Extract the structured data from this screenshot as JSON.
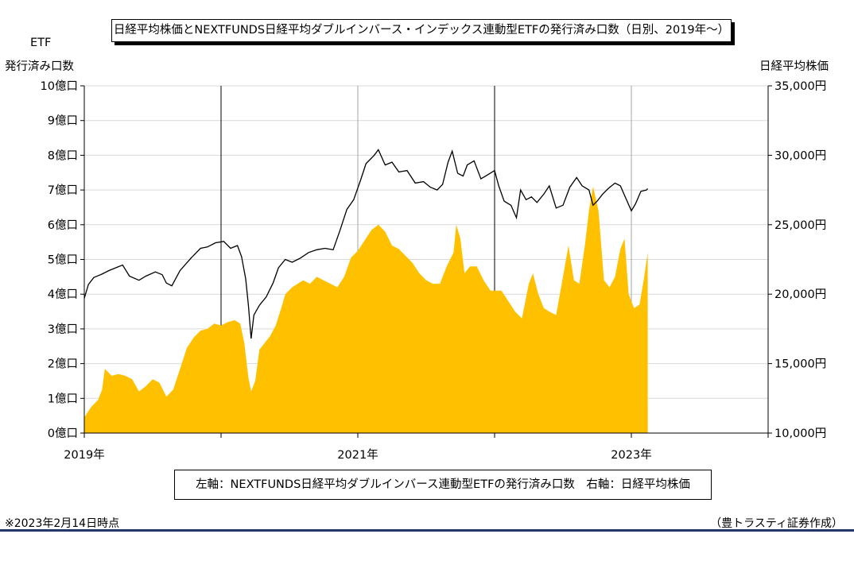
{
  "title": "日経平均株価とNEXTFUNDS日経平均ダブルインバース・インデックス連動型ETFの発行済み口数（日別、2019年～）",
  "left_axis_title_line1": "ETF",
  "left_axis_title_line2": "発行済み口数",
  "right_axis_title": "日経平均株価",
  "legend_text": "左軸：NEXTFUNDS日経平均ダブルインバース連動型ETFの発行済み口数　右軸：日経平均株価",
  "footnote": "※2023年2月14日時点",
  "credit": "（豊トラスティ証券作成）",
  "chart_data": {
    "type": "area",
    "title": "日経平均株価とNEXTFUNDS日経平均ダブルインバース・インデックス連動型ETFの発行済み口数（日別、2019年～）",
    "x_label_ticks": [
      {
        "x": 2019.0,
        "label": "2019年"
      },
      {
        "x": 2021.0,
        "label": "2021年"
      },
      {
        "x": 2023.0,
        "label": "2023年"
      }
    ],
    "x_minor_ticks": [
      2020.0,
      2022.0
    ],
    "x_divider_lines": [
      2020.0,
      2022.0
    ],
    "xlim": [
      2019.0,
      2024.0
    ],
    "grid": true,
    "left_axis": {
      "ylim": [
        0,
        10
      ],
      "ticks": [
        0,
        1,
        2,
        3,
        4,
        5,
        6,
        7,
        8,
        9,
        10
      ],
      "tick_labels": [
        "0億口",
        "1億口",
        "2億口",
        "3億口",
        "4億口",
        "5億口",
        "6億口",
        "7億口",
        "8億口",
        "9億口",
        "10億口"
      ]
    },
    "right_axis": {
      "ylim": [
        10000,
        35000
      ],
      "ticks": [
        10000,
        15000,
        20000,
        25000,
        30000,
        35000
      ],
      "tick_labels": [
        "10,000円",
        "15,000円",
        "20,000円",
        "25,000円",
        "30,000円",
        "35,000円"
      ]
    },
    "series": [
      {
        "axis": "left",
        "type": "area",
        "color": "#ffc000",
        "unit": "億口",
        "points": [
          [
            2019.0,
            0.45
          ],
          [
            2019.05,
            0.75
          ],
          [
            2019.1,
            0.95
          ],
          [
            2019.13,
            1.25
          ],
          [
            2019.15,
            1.85
          ],
          [
            2019.2,
            1.65
          ],
          [
            2019.25,
            1.7
          ],
          [
            2019.3,
            1.65
          ],
          [
            2019.35,
            1.55
          ],
          [
            2019.4,
            1.2
          ],
          [
            2019.45,
            1.35
          ],
          [
            2019.5,
            1.55
          ],
          [
            2019.55,
            1.45
          ],
          [
            2019.6,
            1.05
          ],
          [
            2019.65,
            1.25
          ],
          [
            2019.7,
            1.85
          ],
          [
            2019.75,
            2.45
          ],
          [
            2019.8,
            2.75
          ],
          [
            2019.85,
            2.95
          ],
          [
            2019.9,
            3.0
          ],
          [
            2019.95,
            3.15
          ],
          [
            2020.0,
            3.1
          ],
          [
            2020.05,
            3.2
          ],
          [
            2020.1,
            3.25
          ],
          [
            2020.14,
            3.15
          ],
          [
            2020.17,
            2.6
          ],
          [
            2020.2,
            1.6
          ],
          [
            2020.22,
            1.2
          ],
          [
            2020.25,
            1.5
          ],
          [
            2020.28,
            2.4
          ],
          [
            2020.32,
            2.6
          ],
          [
            2020.36,
            2.8
          ],
          [
            2020.4,
            3.1
          ],
          [
            2020.44,
            3.6
          ],
          [
            2020.47,
            4.0
          ],
          [
            2020.52,
            4.2
          ],
          [
            2020.56,
            4.3
          ],
          [
            2020.6,
            4.4
          ],
          [
            2020.65,
            4.3
          ],
          [
            2020.7,
            4.5
          ],
          [
            2020.75,
            4.4
          ],
          [
            2020.8,
            4.3
          ],
          [
            2020.85,
            4.2
          ],
          [
            2020.9,
            4.5
          ],
          [
            2020.95,
            5.05
          ],
          [
            2021.0,
            5.25
          ],
          [
            2021.05,
            5.55
          ],
          [
            2021.1,
            5.85
          ],
          [
            2021.15,
            6.0
          ],
          [
            2021.2,
            5.8
          ],
          [
            2021.25,
            5.4
          ],
          [
            2021.3,
            5.3
          ],
          [
            2021.35,
            5.1
          ],
          [
            2021.4,
            4.9
          ],
          [
            2021.45,
            4.6
          ],
          [
            2021.5,
            4.4
          ],
          [
            2021.55,
            4.3
          ],
          [
            2021.6,
            4.3
          ],
          [
            2021.65,
            4.8
          ],
          [
            2021.7,
            5.2
          ],
          [
            2021.72,
            6.0
          ],
          [
            2021.75,
            5.6
          ],
          [
            2021.78,
            4.6
          ],
          [
            2021.82,
            4.8
          ],
          [
            2021.87,
            4.8
          ],
          [
            2021.92,
            4.4
          ],
          [
            2021.97,
            4.1
          ],
          [
            2022.0,
            4.1
          ],
          [
            2022.05,
            4.1
          ],
          [
            2022.1,
            3.8
          ],
          [
            2022.15,
            3.5
          ],
          [
            2022.2,
            3.3
          ],
          [
            2022.25,
            4.3
          ],
          [
            2022.28,
            4.6
          ],
          [
            2022.32,
            4.0
          ],
          [
            2022.36,
            3.6
          ],
          [
            2022.4,
            3.5
          ],
          [
            2022.45,
            3.4
          ],
          [
            2022.5,
            4.5
          ],
          [
            2022.54,
            5.4
          ],
          [
            2022.58,
            4.4
          ],
          [
            2022.62,
            4.3
          ],
          [
            2022.66,
            5.4
          ],
          [
            2022.69,
            6.4
          ],
          [
            2022.72,
            7.1
          ],
          [
            2022.76,
            6.4
          ],
          [
            2022.8,
            4.4
          ],
          [
            2022.84,
            4.2
          ],
          [
            2022.88,
            4.5
          ],
          [
            2022.92,
            5.3
          ],
          [
            2022.95,
            5.6
          ],
          [
            2022.98,
            4.0
          ],
          [
            2023.02,
            3.6
          ],
          [
            2023.06,
            3.7
          ],
          [
            2023.09,
            4.4
          ],
          [
            2023.12,
            5.2
          ]
        ]
      },
      {
        "axis": "right",
        "type": "line",
        "color": "#000000",
        "unit": "円",
        "points": [
          [
            2019.0,
            19700
          ],
          [
            2019.03,
            20700
          ],
          [
            2019.07,
            21200
          ],
          [
            2019.12,
            21400
          ],
          [
            2019.18,
            21700
          ],
          [
            2019.23,
            21900
          ],
          [
            2019.28,
            22100
          ],
          [
            2019.33,
            21300
          ],
          [
            2019.4,
            21000
          ],
          [
            2019.45,
            21300
          ],
          [
            2019.52,
            21600
          ],
          [
            2019.57,
            21400
          ],
          [
            2019.6,
            20800
          ],
          [
            2019.64,
            20600
          ],
          [
            2019.7,
            21700
          ],
          [
            2019.78,
            22600
          ],
          [
            2019.85,
            23300
          ],
          [
            2019.9,
            23400
          ],
          [
            2019.96,
            23700
          ],
          [
            2020.02,
            23800
          ],
          [
            2020.07,
            23300
          ],
          [
            2020.12,
            23500
          ],
          [
            2020.15,
            22700
          ],
          [
            2020.18,
            21100
          ],
          [
            2020.2,
            19200
          ],
          [
            2020.22,
            16800
          ],
          [
            2020.24,
            18500
          ],
          [
            2020.28,
            19200
          ],
          [
            2020.33,
            19800
          ],
          [
            2020.38,
            20800
          ],
          [
            2020.42,
            21900
          ],
          [
            2020.47,
            22500
          ],
          [
            2020.52,
            22300
          ],
          [
            2020.58,
            22600
          ],
          [
            2020.64,
            23000
          ],
          [
            2020.7,
            23200
          ],
          [
            2020.76,
            23300
          ],
          [
            2020.82,
            23200
          ],
          [
            2020.87,
            24600
          ],
          [
            2020.92,
            26100
          ],
          [
            2020.97,
            26800
          ],
          [
            2021.02,
            28200
          ],
          [
            2021.06,
            29400
          ],
          [
            2021.12,
            30000
          ],
          [
            2021.15,
            30400
          ],
          [
            2021.2,
            29300
          ],
          [
            2021.25,
            29500
          ],
          [
            2021.3,
            28800
          ],
          [
            2021.36,
            28900
          ],
          [
            2021.42,
            28000
          ],
          [
            2021.48,
            28100
          ],
          [
            2021.53,
            27700
          ],
          [
            2021.58,
            27500
          ],
          [
            2021.62,
            27900
          ],
          [
            2021.66,
            29500
          ],
          [
            2021.69,
            30300
          ],
          [
            2021.73,
            28700
          ],
          [
            2021.77,
            28500
          ],
          [
            2021.8,
            29300
          ],
          [
            2021.85,
            29600
          ],
          [
            2021.9,
            28300
          ],
          [
            2021.95,
            28600
          ],
          [
            2022.0,
            28900
          ],
          [
            2022.03,
            27800
          ],
          [
            2022.07,
            26700
          ],
          [
            2022.12,
            26400
          ],
          [
            2022.16,
            25500
          ],
          [
            2022.19,
            27500
          ],
          [
            2022.23,
            26800
          ],
          [
            2022.27,
            27000
          ],
          [
            2022.31,
            26600
          ],
          [
            2022.36,
            27200
          ],
          [
            2022.4,
            27800
          ],
          [
            2022.45,
            26200
          ],
          [
            2022.5,
            26400
          ],
          [
            2022.55,
            27700
          ],
          [
            2022.6,
            28400
          ],
          [
            2022.64,
            27800
          ],
          [
            2022.69,
            27500
          ],
          [
            2022.72,
            26400
          ],
          [
            2022.75,
            26700
          ],
          [
            2022.79,
            27200
          ],
          [
            2022.83,
            27600
          ],
          [
            2022.88,
            28000
          ],
          [
            2022.92,
            27800
          ],
          [
            2022.96,
            26900
          ],
          [
            2023.0,
            26000
          ],
          [
            2023.03,
            26500
          ],
          [
            2023.07,
            27400
          ],
          [
            2023.11,
            27500
          ],
          [
            2023.12,
            27600
          ]
        ]
      }
    ]
  }
}
